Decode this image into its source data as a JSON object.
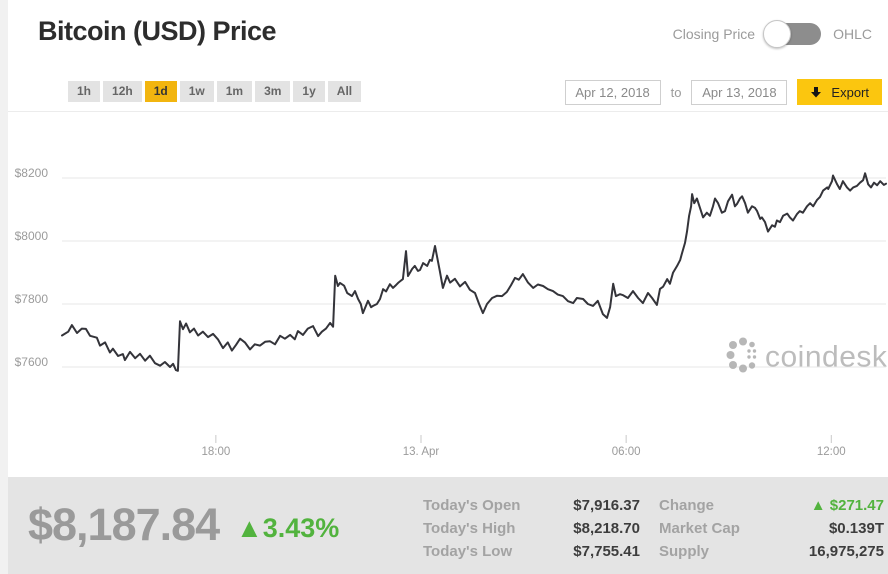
{
  "header": {
    "title": "Bitcoin (USD) Price",
    "toggle": {
      "left_label": "Closing Price",
      "right_label": "OHLC",
      "selected": "Closing Price"
    }
  },
  "controls": {
    "ranges": [
      "1h",
      "12h",
      "1d",
      "1w",
      "1m",
      "3m",
      "1y",
      "All"
    ],
    "active_range": "1d",
    "date_from": "Apr 12, 2018",
    "to_word": "to",
    "date_to": "Apr 13, 2018",
    "export_label": "Export",
    "export_icon": "download-icon"
  },
  "watermark": {
    "text": "coindesk"
  },
  "colors": {
    "accent_yellow": "#f2b50f",
    "export_yellow": "#fbc60f",
    "green": "#52b33e",
    "line": "#34343a",
    "grid": "#e7e7e7",
    "axis_text": "#9b9b9b",
    "stats_bg": "#e4e4e4",
    "big_price_gray": "#9a9a9a",
    "dark_value": "#3d3d3d"
  },
  "stats": {
    "price": "$8,187.84",
    "up_arrow": "▲",
    "change_pct": "3.43%",
    "left_rows": [
      {
        "label": "Today's Open",
        "value": "$7,916.37"
      },
      {
        "label": "Today's High",
        "value": "$8,218.70"
      },
      {
        "label": "Today's Low",
        "value": "$7,755.41"
      }
    ],
    "right_rows": [
      {
        "label": "Change",
        "value": "$271.47",
        "green": true,
        "arrow": true
      },
      {
        "label": "Market Cap",
        "value": "$0.139T"
      },
      {
        "label": "Supply",
        "value": "16,975,275"
      }
    ]
  },
  "chart_data": {
    "type": "line",
    "title": "Bitcoin (USD) Price",
    "xlabel": "",
    "ylabel": "",
    "grid": "horizontal",
    "legend": "none",
    "yticks": [
      "$7600",
      "$7800",
      "$8000",
      "$8200"
    ],
    "ytick_values": [
      7600,
      7800,
      8000,
      8200
    ],
    "ylim": [
      7430,
      8350
    ],
    "xlim_hours": [
      0,
      24.1
    ],
    "xticks": [
      {
        "pos_hours": 4.5,
        "label": "18:00"
      },
      {
        "pos_hours": 10.5,
        "label": "13. Apr"
      },
      {
        "pos_hours": 16.5,
        "label": "06:00"
      },
      {
        "pos_hours": 22.5,
        "label": "12:00"
      }
    ],
    "series": [
      {
        "name": "Closing Price",
        "points": [
          [
            0.0,
            7700
          ],
          [
            0.18,
            7712
          ],
          [
            0.29,
            7733
          ],
          [
            0.44,
            7708
          ],
          [
            0.58,
            7722
          ],
          [
            0.7,
            7721
          ],
          [
            0.82,
            7699
          ],
          [
            1.02,
            7693
          ],
          [
            1.11,
            7668
          ],
          [
            1.26,
            7678
          ],
          [
            1.4,
            7646
          ],
          [
            1.49,
            7658
          ],
          [
            1.64,
            7635
          ],
          [
            1.78,
            7641
          ],
          [
            1.84,
            7622
          ],
          [
            1.99,
            7648
          ],
          [
            2.14,
            7628
          ],
          [
            2.28,
            7642
          ],
          [
            2.43,
            7620
          ],
          [
            2.57,
            7636
          ],
          [
            2.72,
            7612
          ],
          [
            2.87,
            7604
          ],
          [
            3.01,
            7616
          ],
          [
            3.16,
            7600
          ],
          [
            3.25,
            7610
          ],
          [
            3.33,
            7590
          ],
          [
            3.39,
            7588
          ],
          [
            3.45,
            7745
          ],
          [
            3.54,
            7720
          ],
          [
            3.63,
            7738
          ],
          [
            3.74,
            7710
          ],
          [
            3.86,
            7722
          ],
          [
            3.98,
            7700
          ],
          [
            4.12,
            7712
          ],
          [
            4.27,
            7695
          ],
          [
            4.42,
            7705
          ],
          [
            4.56,
            7688
          ],
          [
            4.71,
            7660
          ],
          [
            4.85,
            7678
          ],
          [
            4.97,
            7652
          ],
          [
            5.09,
            7670
          ],
          [
            5.21,
            7690
          ],
          [
            5.35,
            7678
          ],
          [
            5.5,
            7656
          ],
          [
            5.64,
            7672
          ],
          [
            5.79,
            7668
          ],
          [
            5.94,
            7680
          ],
          [
            6.08,
            7682
          ],
          [
            6.23,
            7672
          ],
          [
            6.38,
            7699
          ],
          [
            6.52,
            7690
          ],
          [
            6.67,
            7702
          ],
          [
            6.81,
            7688
          ],
          [
            6.9,
            7714
          ],
          [
            7.05,
            7702
          ],
          [
            7.19,
            7722
          ],
          [
            7.34,
            7730
          ],
          [
            7.49,
            7698
          ],
          [
            7.6,
            7712
          ],
          [
            7.72,
            7722
          ],
          [
            7.84,
            7740
          ],
          [
            7.93,
            7728
          ],
          [
            7.99,
            7890
          ],
          [
            8.07,
            7857
          ],
          [
            8.13,
            7867
          ],
          [
            8.25,
            7858
          ],
          [
            8.34,
            7835
          ],
          [
            8.48,
            7825
          ],
          [
            8.57,
            7841
          ],
          [
            8.66,
            7816
          ],
          [
            8.74,
            7800
          ],
          [
            8.8,
            7771
          ],
          [
            8.89,
            7795
          ],
          [
            8.95,
            7810
          ],
          [
            9.04,
            7790
          ],
          [
            9.1,
            7794
          ],
          [
            9.21,
            7800
          ],
          [
            9.3,
            7816
          ],
          [
            9.39,
            7847
          ],
          [
            9.48,
            7840
          ],
          [
            9.59,
            7863
          ],
          [
            9.68,
            7851
          ],
          [
            9.77,
            7860
          ],
          [
            9.83,
            7867
          ],
          [
            9.92,
            7875
          ],
          [
            9.97,
            7879
          ],
          [
            10.06,
            7968
          ],
          [
            10.12,
            7889
          ],
          [
            10.18,
            7900
          ],
          [
            10.24,
            7911
          ],
          [
            10.32,
            7921
          ],
          [
            10.41,
            7905
          ],
          [
            10.47,
            7908
          ],
          [
            10.56,
            7930
          ],
          [
            10.68,
            7921
          ],
          [
            10.76,
            7940
          ],
          [
            10.82,
            7937
          ],
          [
            10.91,
            7984
          ],
          [
            11.05,
            7905
          ],
          [
            11.14,
            7851
          ],
          [
            11.26,
            7890
          ],
          [
            11.35,
            7868
          ],
          [
            11.49,
            7880
          ],
          [
            11.64,
            7856
          ],
          [
            11.79,
            7870
          ],
          [
            11.93,
            7845
          ],
          [
            12.08,
            7835
          ],
          [
            12.2,
            7800
          ],
          [
            12.31,
            7771
          ],
          [
            12.43,
            7800
          ],
          [
            12.58,
            7819
          ],
          [
            12.72,
            7826
          ],
          [
            12.87,
            7825
          ],
          [
            13.01,
            7838
          ],
          [
            13.13,
            7859
          ],
          [
            13.25,
            7883
          ],
          [
            13.36,
            7877
          ],
          [
            13.48,
            7895
          ],
          [
            13.63,
            7868
          ],
          [
            13.78,
            7851
          ],
          [
            13.92,
            7862
          ],
          [
            14.07,
            7857
          ],
          [
            14.21,
            7847
          ],
          [
            14.36,
            7841
          ],
          [
            14.5,
            7830
          ],
          [
            14.65,
            7825
          ],
          [
            14.8,
            7809
          ],
          [
            14.95,
            7803
          ],
          [
            15.06,
            7819
          ],
          [
            15.24,
            7816
          ],
          [
            15.38,
            7800
          ],
          [
            15.53,
            7794
          ],
          [
            15.67,
            7810
          ],
          [
            15.82,
            7768
          ],
          [
            15.94,
            7756
          ],
          [
            16.03,
            7790
          ],
          [
            16.12,
            7864
          ],
          [
            16.2,
            7825
          ],
          [
            16.32,
            7831
          ],
          [
            16.41,
            7828
          ],
          [
            16.55,
            7819
          ],
          [
            16.7,
            7841
          ],
          [
            16.85,
            7819
          ],
          [
            16.99,
            7803
          ],
          [
            17.14,
            7835
          ],
          [
            17.26,
            7819
          ],
          [
            17.4,
            7797
          ],
          [
            17.49,
            7848
          ],
          [
            17.58,
            7855
          ],
          [
            17.7,
            7879
          ],
          [
            17.78,
            7864
          ],
          [
            17.87,
            7899
          ],
          [
            17.99,
            7921
          ],
          [
            18.08,
            7940
          ],
          [
            18.13,
            7960
          ],
          [
            18.22,
            7994
          ],
          [
            18.28,
            8030
          ],
          [
            18.34,
            8080
          ],
          [
            18.4,
            8110
          ],
          [
            18.43,
            8149
          ],
          [
            18.49,
            8120
          ],
          [
            18.57,
            8135
          ],
          [
            18.66,
            8105
          ],
          [
            18.75,
            8075
          ],
          [
            18.86,
            8090
          ],
          [
            18.95,
            8080
          ],
          [
            19.04,
            8110
          ],
          [
            19.1,
            8135
          ],
          [
            19.19,
            8120
          ],
          [
            19.3,
            8090
          ],
          [
            19.39,
            8095
          ],
          [
            19.48,
            8126
          ],
          [
            19.6,
            8147
          ],
          [
            19.68,
            8110
          ],
          [
            19.74,
            8117
          ],
          [
            19.83,
            8135
          ],
          [
            19.89,
            8142
          ],
          [
            19.98,
            8120
          ],
          [
            20.06,
            8090
          ],
          [
            20.18,
            8110
          ],
          [
            20.27,
            8105
          ],
          [
            20.33,
            8095
          ],
          [
            20.42,
            8070
          ],
          [
            20.47,
            8075
          ],
          [
            20.56,
            8060
          ],
          [
            20.65,
            8030
          ],
          [
            20.77,
            8050
          ],
          [
            20.85,
            8045
          ],
          [
            20.91,
            8065
          ],
          [
            21.0,
            8060
          ],
          [
            21.09,
            8080
          ],
          [
            21.21,
            8087
          ],
          [
            21.29,
            8075
          ],
          [
            21.38,
            8065
          ],
          [
            21.5,
            8086
          ],
          [
            21.58,
            8095
          ],
          [
            21.67,
            8090
          ],
          [
            21.79,
            8110
          ],
          [
            21.88,
            8120
          ],
          [
            21.97,
            8110
          ],
          [
            22.08,
            8130
          ],
          [
            22.17,
            8140
          ],
          [
            22.26,
            8160
          ],
          [
            22.38,
            8170
          ],
          [
            22.41,
            8165
          ],
          [
            22.52,
            8190
          ],
          [
            22.55,
            8208
          ],
          [
            22.67,
            8180
          ],
          [
            22.75,
            8165
          ],
          [
            22.84,
            8190
          ],
          [
            22.96,
            8170
          ],
          [
            23.05,
            8160
          ],
          [
            23.14,
            8170
          ],
          [
            23.25,
            8175
          ],
          [
            23.34,
            8185
          ],
          [
            23.43,
            8193
          ],
          [
            23.49,
            8215
          ],
          [
            23.58,
            8180
          ],
          [
            23.66,
            8170
          ],
          [
            23.75,
            8185
          ],
          [
            23.84,
            8177
          ],
          [
            23.93,
            8190
          ],
          [
            24.04,
            8178
          ],
          [
            24.1,
            8182
          ]
        ]
      }
    ]
  }
}
